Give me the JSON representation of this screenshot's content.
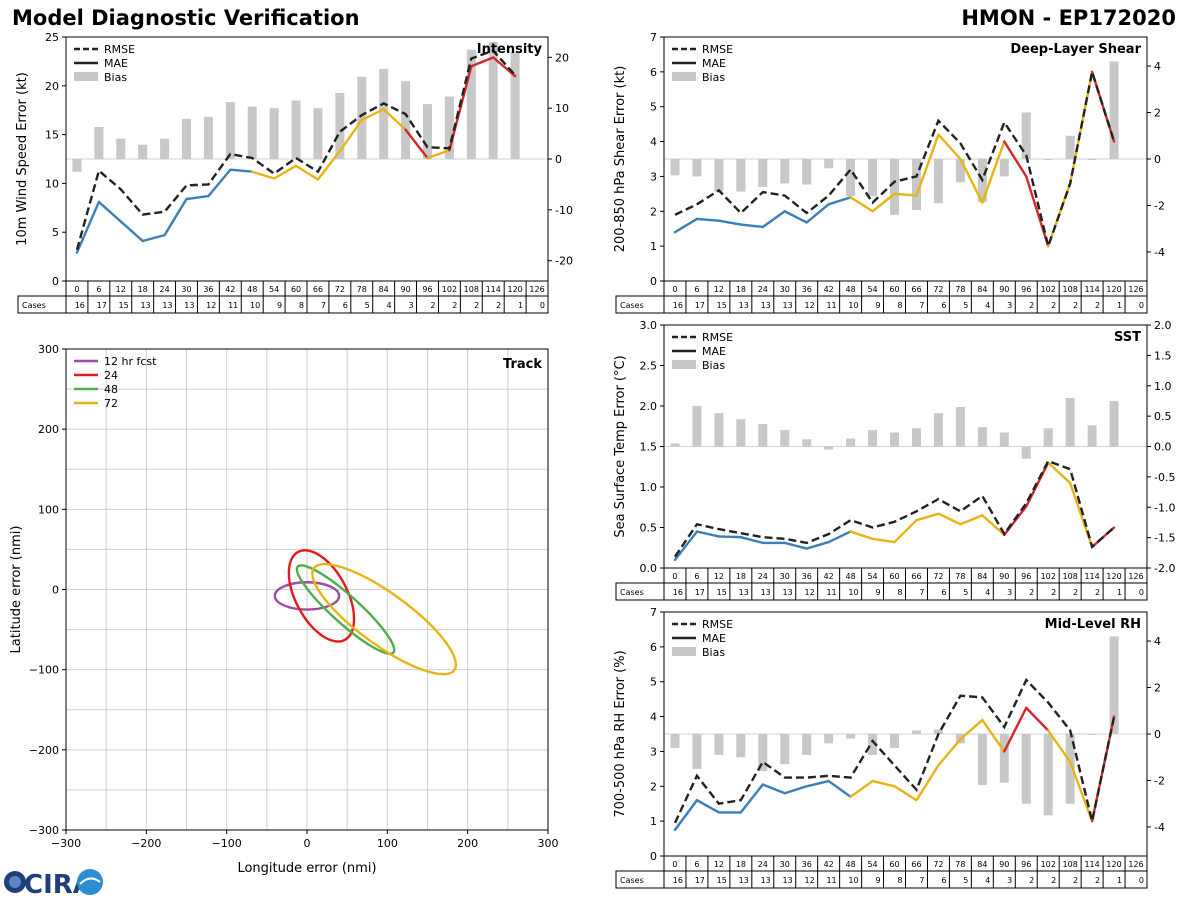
{
  "header": {
    "left_title": "Model Diagnostic Verification",
    "right_title": "HMON - EP172020"
  },
  "logo": {
    "text": "CIRA"
  },
  "cases_table": {
    "row_label": "Cases",
    "hours": [
      "0",
      "6",
      "12",
      "18",
      "24",
      "30",
      "36",
      "42",
      "48",
      "54",
      "60",
      "66",
      "72",
      "78",
      "84",
      "90",
      "96",
      "102",
      "108",
      "114",
      "120",
      "126"
    ],
    "cases": [
      "16",
      "17",
      "15",
      "13",
      "13",
      "13",
      "12",
      "11",
      "10",
      "9",
      "8",
      "7",
      "6",
      "5",
      "4",
      "3",
      "2",
      "2",
      "2",
      "2",
      "1",
      "0"
    ]
  },
  "chart_data": [
    {
      "id": "intensity",
      "type": "line",
      "title": "Intensity",
      "ylabel": "10m Wind Speed Error (kt)",
      "ylim": [
        0,
        25
      ],
      "yticks": [
        0,
        5,
        10,
        15,
        20,
        25
      ],
      "y2lim": [
        -24,
        24
      ],
      "y2ticks": [
        -20,
        -10,
        0,
        10,
        20
      ],
      "x": [
        0,
        6,
        12,
        18,
        24,
        30,
        36,
        42,
        48,
        54,
        60,
        66,
        72,
        78,
        84,
        90,
        96,
        102,
        108,
        114,
        120,
        126
      ],
      "legend": [
        "RMSE",
        "MAE",
        "Bias"
      ],
      "rmse": [
        3.2,
        11.3,
        9.4,
        6.8,
        7.1,
        9.8,
        9.9,
        13.0,
        12.6,
        11.0,
        12.6,
        11.2,
        15.3,
        17.0,
        18.2,
        17.1,
        13.7,
        13.6,
        22.8,
        23.6,
        21.1,
        null
      ],
      "mae": [
        2.9,
        8.1,
        6.1,
        4.1,
        4.7,
        8.4,
        8.7,
        11.4,
        11.2,
        10.5,
        11.8,
        10.4,
        13.3,
        16.5,
        17.6,
        15.5,
        12.6,
        13.4,
        22.0,
        22.9,
        21.0,
        null
      ],
      "bias": [
        -2.5,
        6.3,
        4.0,
        2.8,
        4.0,
        7.9,
        8.3,
        11.2,
        10.3,
        10.0,
        11.5,
        10.0,
        13.0,
        16.2,
        17.7,
        15.3,
        10.8,
        12.3,
        21.5,
        23.0,
        21.0,
        null
      ]
    },
    {
      "id": "shear",
      "type": "line",
      "title": "Deep-Layer Shear",
      "ylabel": "200-850 hPa Shear Error (kt)",
      "ylim": [
        0,
        7
      ],
      "yticks": [
        0,
        1,
        2,
        3,
        4,
        5,
        6,
        7
      ],
      "y2lim": [
        -5.25,
        5.25
      ],
      "y2ticks": [
        -4,
        -2,
        0,
        2,
        4
      ],
      "x": [
        0,
        6,
        12,
        18,
        24,
        30,
        36,
        42,
        48,
        54,
        60,
        66,
        72,
        78,
        84,
        90,
        96,
        102,
        108,
        114,
        120,
        126
      ],
      "legend": [
        "RMSE",
        "MAE",
        "Bias"
      ],
      "rmse": [
        1.9,
        2.2,
        2.6,
        1.95,
        2.55,
        2.45,
        1.95,
        2.45,
        3.2,
        2.25,
        2.85,
        3.0,
        4.6,
        3.95,
        2.9,
        4.55,
        3.6,
        1.0,
        2.8,
        6.0,
        4.0,
        null
      ],
      "mae": [
        1.4,
        1.78,
        1.73,
        1.62,
        1.55,
        2.0,
        1.68,
        2.2,
        2.4,
        2.0,
        2.5,
        2.45,
        4.2,
        3.5,
        2.25,
        4.0,
        3.0,
        1.0,
        2.8,
        6.0,
        4.0,
        null
      ],
      "bias": [
        -0.7,
        -0.75,
        -1.4,
        -1.4,
        -1.2,
        -1.05,
        -1.1,
        -0.4,
        -1.6,
        -1.6,
        -2.4,
        -2.2,
        -1.9,
        -1.0,
        -1.85,
        -0.75,
        2.0,
        0.0,
        1.0,
        0.0,
        4.2,
        null
      ]
    },
    {
      "id": "sst",
      "type": "line",
      "title": "SST",
      "ylabel": "Sea Surface Temp Error (°C)",
      "ylim": [
        0,
        3.0
      ],
      "yticks": [
        0.0,
        0.5,
        1.0,
        1.5,
        2.0,
        2.5,
        3.0
      ],
      "y2lim": [
        -2.0,
        2.0
      ],
      "y2ticks": [
        -2.0,
        -1.5,
        -1.0,
        -0.5,
        0.0,
        0.5,
        1.0,
        1.5,
        2.0
      ],
      "x": [
        0,
        6,
        12,
        18,
        24,
        30,
        36,
        42,
        48,
        54,
        60,
        66,
        72,
        78,
        84,
        90,
        96,
        102,
        108,
        114,
        120,
        126
      ],
      "legend": [
        "RMSE",
        "MAE",
        "Bias"
      ],
      "rmse": [
        0.14,
        0.54,
        0.48,
        0.43,
        0.38,
        0.36,
        0.31,
        0.42,
        0.59,
        0.5,
        0.57,
        0.7,
        0.85,
        0.7,
        0.89,
        0.42,
        0.8,
        1.32,
        1.22,
        0.26,
        0.5,
        null
      ],
      "mae": [
        0.1,
        0.45,
        0.39,
        0.38,
        0.31,
        0.31,
        0.24,
        0.32,
        0.45,
        0.36,
        0.32,
        0.59,
        0.67,
        0.54,
        0.65,
        0.41,
        0.76,
        1.3,
        1.05,
        0.26,
        0.5,
        null
      ],
      "bias": [
        0.05,
        0.67,
        0.55,
        0.45,
        0.37,
        0.27,
        0.12,
        -0.05,
        0.13,
        0.27,
        0.23,
        0.3,
        0.55,
        0.65,
        0.32,
        0.23,
        -0.2,
        0.3,
        0.8,
        0.35,
        0.75,
        null
      ]
    },
    {
      "id": "rh",
      "type": "line",
      "title": "Mid-Level RH",
      "ylabel": "700-500 hPa RH Error (%)",
      "ylim": [
        0,
        7
      ],
      "yticks": [
        0,
        1,
        2,
        3,
        4,
        5,
        6,
        7
      ],
      "y2lim": [
        -5.25,
        5.25
      ],
      "y2ticks": [
        -4,
        -2,
        0,
        2,
        4
      ],
      "x": [
        0,
        6,
        12,
        18,
        24,
        30,
        36,
        42,
        48,
        54,
        60,
        66,
        72,
        78,
        84,
        90,
        96,
        102,
        108,
        114,
        120,
        126
      ],
      "legend": [
        "RMSE",
        "MAE",
        "Bias"
      ],
      "rmse": [
        0.95,
        2.3,
        1.5,
        1.6,
        2.7,
        2.25,
        2.25,
        2.3,
        2.25,
        3.3,
        2.6,
        1.9,
        3.5,
        4.6,
        4.55,
        3.7,
        5.05,
        4.4,
        3.6,
        1.0,
        4.0,
        null
      ],
      "mae": [
        0.75,
        1.6,
        1.25,
        1.25,
        2.05,
        1.8,
        2.0,
        2.15,
        1.7,
        2.15,
        2.0,
        1.6,
        2.6,
        3.35,
        3.9,
        3.0,
        4.25,
        3.6,
        2.7,
        1.0,
        4.0,
        null
      ],
      "bias": [
        -0.6,
        -1.5,
        -0.9,
        -1.0,
        -1.6,
        -1.3,
        -0.9,
        -0.4,
        -0.2,
        -0.9,
        -0.6,
        0.15,
        0.2,
        -0.4,
        -2.2,
        -2.1,
        -3.0,
        -3.5,
        -3.0,
        0.0,
        4.2,
        null
      ]
    },
    {
      "id": "track",
      "type": "scatter",
      "title": "Track",
      "xlabel": "Longitude error (nmi)",
      "ylabel": "Latitude error (nmi)",
      "xlim": [
        -300,
        300
      ],
      "ylim": [
        -300,
        300
      ],
      "xticks": [
        -300,
        -200,
        -100,
        0,
        100,
        200,
        300
      ],
      "yticks": [
        -300,
        -200,
        -100,
        0,
        100,
        200,
        300
      ],
      "legend": [
        "12 hr fcst",
        "24",
        "48",
        "72"
      ],
      "ellipses": [
        {
          "label": "12 hr fcst",
          "color": "#984ea3",
          "cx": 0,
          "cy": -8,
          "rx": 40,
          "ry": 17,
          "angle": 0
        },
        {
          "label": "24",
          "color": "#e41a1c",
          "cx": 18,
          "cy": -8,
          "rx": 62,
          "ry": 32,
          "angle": -62
        },
        {
          "label": "48",
          "color": "#4daf4a",
          "cx": 48,
          "cy": -25,
          "rx": 80,
          "ry": 17,
          "angle": -42
        },
        {
          "label": "72",
          "color": "#e6b413",
          "cx": 96,
          "cy": -37,
          "rx": 108,
          "ry": 32,
          "angle": -36
        }
      ]
    }
  ],
  "colors": {
    "rmse": "#222222",
    "mae_lead": "#3a7fb8",
    "mae_mid": "#e6b413",
    "mae_late": "#d6262a",
    "bias": "#c8c8c8"
  }
}
